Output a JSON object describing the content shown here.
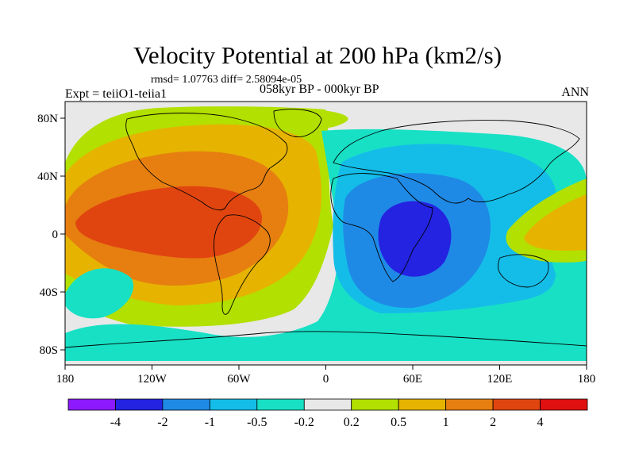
{
  "title": "Velocity Potential at 200 hPa (km2/s)",
  "stats": "rmsd= 1.07763 diff= 2.58094e-05",
  "period": "058kyr BP - 000kyr BP",
  "experiment": "Expt = teiiO1-teiia1",
  "season": "ANN",
  "chart_data": {
    "type": "filled-contour-map",
    "projection": "cylindrical equidistant",
    "x_range": [
      -180,
      180
    ],
    "y_range": [
      -90,
      90
    ],
    "x_tick_labels": [
      "180",
      "120W",
      "60W",
      "0",
      "60E",
      "120E",
      "180"
    ],
    "y_tick_labels": [
      "80N",
      "40N",
      "0",
      "40S",
      "80S"
    ],
    "colorbar": {
      "levels": [
        "-4",
        "-2",
        "-1",
        "-0.5",
        "-0.2",
        "0.2",
        "0.5",
        "1",
        "2",
        "4"
      ],
      "colors": [
        "#8c1aff",
        "#2323e1",
        "#1f8ae6",
        "#14bde8",
        "#18e0c5",
        "#e8e8e8",
        "#b2e000",
        "#e6b400",
        "#e67f10",
        "#e04510",
        "#e01010"
      ]
    },
    "features": [
      {
        "name": "positive-center",
        "lon": -100,
        "lat": 5,
        "value_range": "2 to 4"
      },
      {
        "name": "negative-center",
        "lon": 50,
        "lat": 0,
        "value_range": "-4 to -2"
      },
      {
        "name": "west-pacific-positive",
        "lon": 150,
        "lat": 0,
        "value_range": "0.5 to 1"
      }
    ]
  }
}
